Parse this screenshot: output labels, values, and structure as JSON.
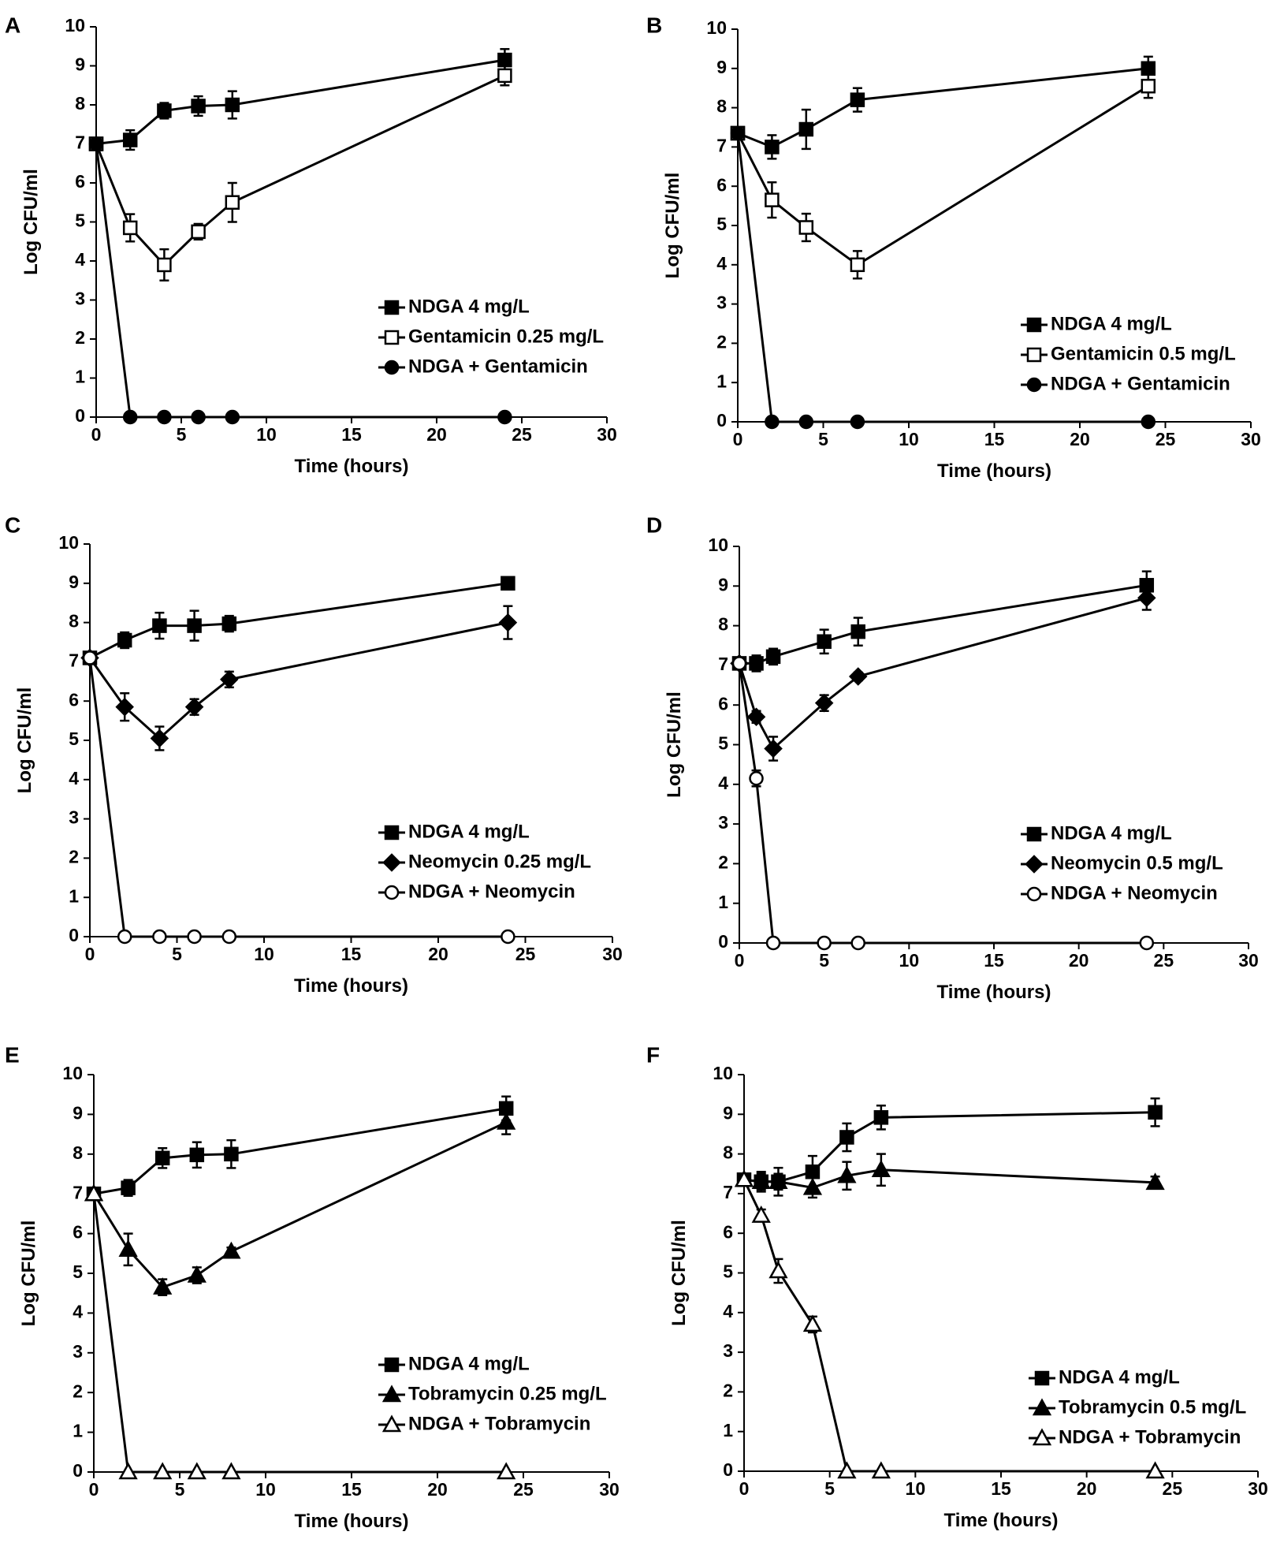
{
  "figure": {
    "title": ""
  },
  "chart_data": [
    {
      "panel": "A",
      "type": "line",
      "xlabel": "Time (hours)",
      "ylabel": "Log CFU/ml",
      "xlim": [
        0,
        30
      ],
      "ylim": [
        0,
        10
      ],
      "xticks": [
        0,
        5,
        10,
        15,
        20,
        25,
        30
      ],
      "yticks": [
        0,
        1,
        2,
        3,
        4,
        5,
        6,
        7,
        8,
        9,
        10
      ],
      "legend_position": "bottom-right",
      "series": [
        {
          "name": "NDGA 4 mg/L",
          "marker": "square-filled",
          "x": [
            0,
            2,
            4,
            6,
            8,
            24
          ],
          "y": [
            7.0,
            7.1,
            7.85,
            7.97,
            8.0,
            9.15
          ],
          "err": [
            0.1,
            0.25,
            0.2,
            0.25,
            0.35,
            0.28
          ]
        },
        {
          "name": "Gentamicin 0.25 mg/L",
          "marker": "square-open",
          "x": [
            0,
            2,
            4,
            6,
            8,
            24
          ],
          "y": [
            7.0,
            4.85,
            3.9,
            4.75,
            5.5,
            8.75
          ],
          "err": [
            0.1,
            0.35,
            0.4,
            0.2,
            0.5,
            0.25
          ]
        },
        {
          "name": "NDGA + Gentamicin",
          "marker": "circle-filled",
          "x": [
            0,
            2,
            4,
            6,
            8,
            24
          ],
          "y": [
            7.0,
            0,
            0,
            0,
            0,
            0
          ],
          "err": [
            0,
            0,
            0,
            0,
            0,
            0
          ]
        }
      ]
    },
    {
      "panel": "B",
      "type": "line",
      "xlabel": "Time (hours)",
      "ylabel": "Log CFU/ml",
      "xlim": [
        0,
        30
      ],
      "ylim": [
        0,
        10
      ],
      "xticks": [
        0,
        5,
        10,
        15,
        20,
        25,
        30
      ],
      "yticks": [
        0,
        1,
        2,
        3,
        4,
        5,
        6,
        7,
        8,
        9,
        10
      ],
      "legend_position": "bottom-right",
      "series": [
        {
          "name": "NDGA 4 mg/L",
          "marker": "square-filled",
          "x": [
            0,
            2,
            4,
            7,
            24
          ],
          "y": [
            7.35,
            7.0,
            7.45,
            8.2,
            9.0
          ],
          "err": [
            0.1,
            0.3,
            0.5,
            0.3,
            0.3
          ]
        },
        {
          "name": "Gentamicin 0.5 mg/L",
          "marker": "square-open",
          "x": [
            0,
            2,
            4,
            7,
            24
          ],
          "y": [
            7.35,
            5.65,
            4.95,
            4.0,
            8.55
          ],
          "err": [
            0.1,
            0.45,
            0.35,
            0.35,
            0.3
          ]
        },
        {
          "name": "NDGA + Gentamicin",
          "marker": "circle-filled",
          "x": [
            0,
            2,
            4,
            7,
            24
          ],
          "y": [
            7.35,
            0,
            0,
            0,
            0
          ],
          "err": [
            0,
            0,
            0,
            0,
            0
          ]
        }
      ]
    },
    {
      "panel": "C",
      "type": "line",
      "xlabel": "Time (hours)",
      "ylabel": "Log CFU/ml",
      "xlim": [
        0,
        30
      ],
      "ylim": [
        0,
        10
      ],
      "xticks": [
        0,
        5,
        10,
        15,
        20,
        25,
        30
      ],
      "yticks": [
        0,
        1,
        2,
        3,
        4,
        5,
        6,
        7,
        8,
        9,
        10
      ],
      "legend_position": "bottom-right",
      "series": [
        {
          "name": "NDGA 4  mg/L",
          "marker": "square-filled",
          "x": [
            0,
            2,
            4,
            6,
            8,
            24
          ],
          "y": [
            7.1,
            7.55,
            7.92,
            7.92,
            7.97,
            9.0
          ],
          "err": [
            0.05,
            0.2,
            0.33,
            0.38,
            0.2,
            0.05
          ]
        },
        {
          "name": "Neomycin 0.25 mg/L",
          "marker": "diamond-filled",
          "x": [
            0,
            2,
            4,
            6,
            8,
            24
          ],
          "y": [
            7.1,
            5.85,
            5.05,
            5.85,
            6.55,
            8.0
          ],
          "err": [
            0.05,
            0.35,
            0.3,
            0.2,
            0.2,
            0.42
          ]
        },
        {
          "name": "NDGA + Neomycin",
          "marker": "circle-open",
          "x": [
            0,
            2,
            4,
            6,
            8,
            24
          ],
          "y": [
            7.1,
            0,
            0,
            0,
            0,
            0
          ],
          "err": [
            0,
            0,
            0,
            0,
            0,
            0
          ]
        }
      ]
    },
    {
      "panel": "D",
      "type": "line",
      "xlabel": "Time (hours)",
      "ylabel": "Log CFU/ml",
      "xlim": [
        0,
        30
      ],
      "ylim": [
        0,
        10
      ],
      "xticks": [
        0,
        5,
        10,
        15,
        20,
        25,
        30
      ],
      "yticks": [
        0,
        1,
        2,
        3,
        4,
        5,
        6,
        7,
        8,
        9,
        10
      ],
      "legend_position": "bottom-right",
      "series": [
        {
          "name": "NDGA 4 mg/L",
          "marker": "square-filled",
          "x": [
            0,
            1,
            2,
            5,
            7,
            24
          ],
          "y": [
            7.05,
            7.05,
            7.22,
            7.6,
            7.85,
            9.02
          ],
          "err": [
            0.1,
            0.2,
            0.2,
            0.3,
            0.35,
            0.35
          ]
        },
        {
          "name": "Neomycin 0.5 mg/L",
          "marker": "diamond-filled",
          "x": [
            0,
            1,
            2,
            5,
            7,
            24
          ],
          "y": [
            7.05,
            5.7,
            4.9,
            6.05,
            6.72,
            8.7
          ],
          "err": [
            0.1,
            0.15,
            0.3,
            0.2,
            0.1,
            0.3
          ]
        },
        {
          "name": "NDGA + Neomycin",
          "marker": "circle-open",
          "x": [
            0,
            1,
            2,
            5,
            7,
            24
          ],
          "y": [
            7.05,
            4.15,
            0,
            0,
            0,
            0
          ],
          "err": [
            0,
            0.2,
            0,
            0,
            0,
            0
          ]
        }
      ]
    },
    {
      "panel": "E",
      "type": "line",
      "xlabel": "Time (hours)",
      "ylabel": "Log CFU/ml",
      "xlim": [
        0,
        30
      ],
      "ylim": [
        0,
        10
      ],
      "xticks": [
        0,
        5,
        10,
        15,
        20,
        25,
        30
      ],
      "yticks": [
        0,
        1,
        2,
        3,
        4,
        5,
        6,
        7,
        8,
        9,
        10
      ],
      "legend_position": "bottom-right",
      "series": [
        {
          "name": "NDGA 4 mg/L",
          "marker": "square-filled",
          "x": [
            0,
            2,
            4,
            6,
            8,
            24
          ],
          "y": [
            7.0,
            7.15,
            7.9,
            7.98,
            8.0,
            9.15
          ],
          "err": [
            0.1,
            0.2,
            0.25,
            0.32,
            0.35,
            0.3
          ]
        },
        {
          "name": "Tobramycin 0.25 mg/L",
          "marker": "triangle-filled",
          "x": [
            0,
            2,
            4,
            6,
            8,
            24
          ],
          "y": [
            7.0,
            5.6,
            4.65,
            4.95,
            5.55,
            8.8
          ],
          "err": [
            0.1,
            0.4,
            0.2,
            0.2,
            0.1,
            0.3
          ]
        },
        {
          "name": "NDGA + Tobramycin",
          "marker": "triangle-open",
          "x": [
            0,
            2,
            4,
            6,
            8,
            24
          ],
          "y": [
            7.0,
            0,
            0,
            0,
            0,
            0
          ],
          "err": [
            0,
            0,
            0,
            0,
            0,
            0
          ]
        }
      ]
    },
    {
      "panel": "F",
      "type": "line",
      "xlabel": "Time (hours)",
      "ylabel": "Log CFU/ml",
      "xlim": [
        0,
        30
      ],
      "ylim": [
        0,
        10
      ],
      "xticks": [
        0,
        5,
        10,
        15,
        20,
        25,
        30
      ],
      "yticks": [
        0,
        1,
        2,
        3,
        4,
        5,
        6,
        7,
        8,
        9,
        10
      ],
      "legend_position": "bottom-right",
      "series": [
        {
          "name": "NDGA 4 mg/L",
          "marker": "square-filled",
          "x": [
            0,
            1,
            2,
            4,
            6,
            8,
            24
          ],
          "y": [
            7.35,
            7.3,
            7.3,
            7.55,
            8.42,
            8.92,
            9.05
          ],
          "err": [
            0.1,
            0.2,
            0.35,
            0.4,
            0.35,
            0.3,
            0.35
          ]
        },
        {
          "name": "Tobramycin 0.5 mg/L",
          "marker": "triangle-filled",
          "x": [
            0,
            1,
            2,
            4,
            6,
            8,
            24
          ],
          "y": [
            7.35,
            7.3,
            7.3,
            7.15,
            7.45,
            7.6,
            7.28
          ],
          "err": [
            0.1,
            0.25,
            0.2,
            0.25,
            0.35,
            0.4,
            0.15
          ]
        },
        {
          "name": "NDGA + Tobramycin",
          "marker": "triangle-open",
          "x": [
            0,
            1,
            2,
            4,
            6,
            8,
            24
          ],
          "y": [
            7.35,
            6.45,
            5.05,
            3.7,
            0,
            0,
            0
          ],
          "err": [
            0.1,
            0.15,
            0.3,
            0.2,
            0,
            0,
            0
          ]
        }
      ]
    }
  ]
}
